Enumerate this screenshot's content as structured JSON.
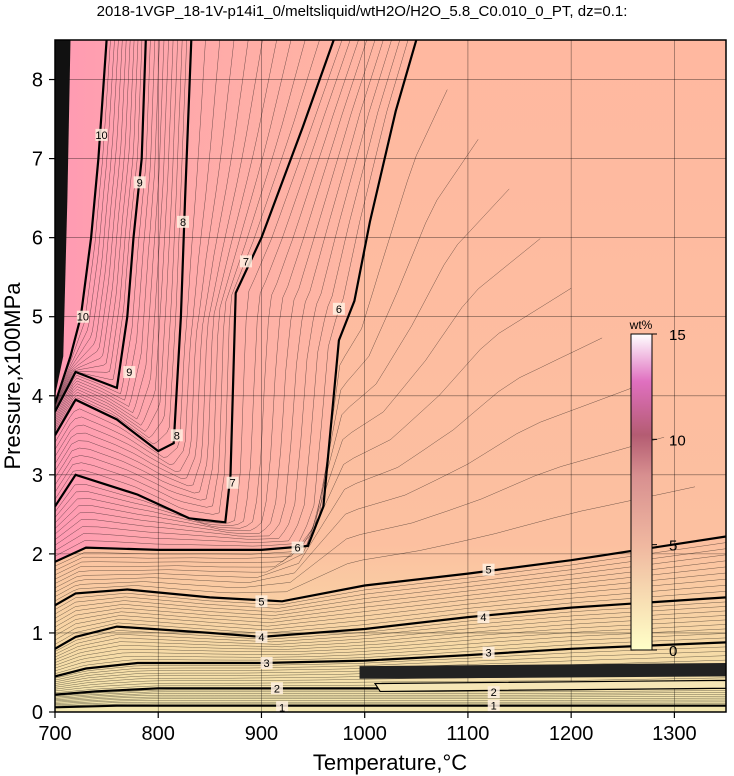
{
  "chart_data": {
    "type": "heatmap",
    "title": "2018-1VGP_18-1V-p14i1_0/meltsliquid/wtH2O/H2O_5.8_C0.010_0_PT, dz=0.1:",
    "xlabel": "Temperature,°C",
    "ylabel": "Pressure,x100MPa",
    "xlim": [
      700,
      1350
    ],
    "ylim": [
      0,
      8.5
    ],
    "xticks": [
      700,
      800,
      900,
      1000,
      1100,
      1200,
      1300
    ],
    "yticks": [
      0,
      1,
      2,
      3,
      4,
      5,
      6,
      7,
      8
    ],
    "grid": true,
    "colorbar": {
      "unit": "wt%",
      "range": [
        0,
        15
      ],
      "ticks": [
        0,
        5,
        10,
        15
      ],
      "colors": [
        "#ffffc8",
        "#ffb89a",
        "#ff9fb0",
        "#e070c0",
        "#ffffff"
      ]
    },
    "contours": [
      {
        "level": 1,
        "points": [
          [
            700,
            0.06
          ],
          [
            760,
            0.08
          ],
          [
            850,
            0.08
          ],
          [
            1000,
            0.08
          ],
          [
            1350,
            0.08
          ]
        ]
      },
      {
        "level": 2,
        "points": [
          [
            700,
            0.22
          ],
          [
            740,
            0.26
          ],
          [
            800,
            0.3
          ],
          [
            900,
            0.3
          ],
          [
            1000,
            0.3
          ],
          [
            1200,
            0.3
          ],
          [
            1350,
            0.32
          ]
        ]
      },
      {
        "level": 3,
        "points": [
          [
            700,
            0.45
          ],
          [
            730,
            0.55
          ],
          [
            780,
            0.62
          ],
          [
            900,
            0.62
          ],
          [
            1000,
            0.65
          ],
          [
            1100,
            0.72
          ],
          [
            1200,
            0.8
          ],
          [
            1350,
            0.88
          ]
        ]
      },
      {
        "level": 4,
        "points": [
          [
            700,
            0.8
          ],
          [
            720,
            0.95
          ],
          [
            760,
            1.08
          ],
          [
            850,
            1.0
          ],
          [
            900,
            0.95
          ],
          [
            1000,
            1.05
          ],
          [
            1100,
            1.2
          ],
          [
            1200,
            1.32
          ],
          [
            1350,
            1.45
          ]
        ]
      },
      {
        "level": 5,
        "points": [
          [
            700,
            1.35
          ],
          [
            720,
            1.5
          ],
          [
            770,
            1.55
          ],
          [
            850,
            1.45
          ],
          [
            920,
            1.4
          ],
          [
            1000,
            1.6
          ],
          [
            1100,
            1.75
          ],
          [
            1200,
            1.92
          ],
          [
            1350,
            2.22
          ]
        ]
      },
      {
        "level": 6,
        "points": [
          [
            700,
            1.9
          ],
          [
            730,
            2.08
          ],
          [
            800,
            2.05
          ],
          [
            900,
            2.05
          ],
          [
            945,
            2.1
          ],
          [
            960,
            2.6
          ],
          [
            975,
            4.7
          ],
          [
            990,
            5.2
          ],
          [
            1005,
            6.2
          ],
          [
            1030,
            7.6
          ],
          [
            1050,
            8.5
          ]
        ]
      },
      {
        "level": 7,
        "points": [
          [
            700,
            2.6
          ],
          [
            720,
            3.0
          ],
          [
            780,
            2.75
          ],
          [
            830,
            2.45
          ],
          [
            865,
            2.4
          ],
          [
            870,
            3.0
          ],
          [
            875,
            5.3
          ],
          [
            900,
            6.0
          ],
          [
            940,
            7.4
          ],
          [
            970,
            8.5
          ]
        ]
      },
      {
        "level": 8,
        "points": [
          [
            700,
            3.5
          ],
          [
            720,
            3.95
          ],
          [
            760,
            3.7
          ],
          [
            800,
            3.3
          ],
          [
            815,
            3.4
          ],
          [
            822,
            5.0
          ],
          [
            826,
            6.5
          ],
          [
            832,
            8.5
          ]
        ]
      },
      {
        "level": 9,
        "points": [
          [
            700,
            3.8
          ],
          [
            720,
            4.3
          ],
          [
            740,
            4.2
          ],
          [
            760,
            4.1
          ],
          [
            770,
            5.0
          ],
          [
            776,
            6.0
          ],
          [
            784,
            7.0
          ],
          [
            788,
            8.5
          ]
        ]
      },
      {
        "level": 10,
        "points": [
          [
            700,
            3.9
          ],
          [
            715,
            4.5
          ],
          [
            725,
            5.0
          ],
          [
            735,
            6.0
          ],
          [
            742,
            7.0
          ],
          [
            750,
            8.5
          ]
        ]
      }
    ],
    "contour_labels": [
      "1",
      "2",
      "3",
      "4",
      "5",
      "6",
      "7",
      "8",
      "9",
      "10"
    ]
  }
}
